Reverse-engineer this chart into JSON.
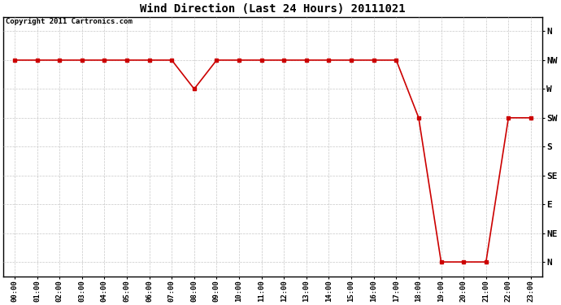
{
  "title": "Wind Direction (Last 24 Hours) 20111021",
  "copyright_text": "Copyright 2011 Cartronics.com",
  "line_color": "#cc0000",
  "bg_color": "#ffffff",
  "grid_color": "#c8c8c8",
  "marker": "s",
  "marker_size": 3,
  "line_width": 1.2,
  "ytick_labels": [
    "N",
    "NW",
    "W",
    "SW",
    "S",
    "SE",
    "E",
    "NE",
    "N"
  ],
  "ytick_values": [
    8,
    7,
    6,
    5,
    4,
    3,
    2,
    1,
    0
  ],
  "xtick_labels": [
    "00:00",
    "01:00",
    "02:00",
    "03:00",
    "04:00",
    "05:00",
    "06:00",
    "07:00",
    "08:00",
    "09:00",
    "10:00",
    "11:00",
    "12:00",
    "13:00",
    "14:00",
    "15:00",
    "16:00",
    "17:00",
    "18:00",
    "19:00",
    "20:00",
    "21:00",
    "22:00",
    "23:00"
  ],
  "x_values": [
    0,
    1,
    2,
    3,
    4,
    5,
    6,
    7,
    8,
    9,
    10,
    11,
    12,
    13,
    14,
    15,
    16,
    17,
    18,
    19,
    20,
    21,
    22,
    23
  ],
  "y_values": [
    7,
    7,
    7,
    7,
    7,
    7,
    7,
    7,
    6,
    7,
    7,
    7,
    7,
    7,
    7,
    7,
    7,
    7,
    5,
    0,
    0,
    0,
    5,
    5
  ],
  "xlim": [
    -0.5,
    23.5
  ],
  "ylim": [
    -0.5,
    8.5
  ]
}
